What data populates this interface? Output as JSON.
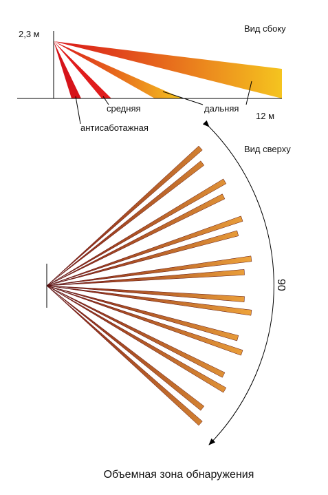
{
  "side_view": {
    "height_label": "2,3 м",
    "title": "Вид сбоку",
    "zones": [
      "средняя",
      "дальняя",
      "антисаботажная"
    ],
    "range_label": "12 м"
  },
  "top_view": {
    "title": "Вид сверху",
    "angle_label": "90"
  },
  "caption": "Объемная зона обнаружения"
}
